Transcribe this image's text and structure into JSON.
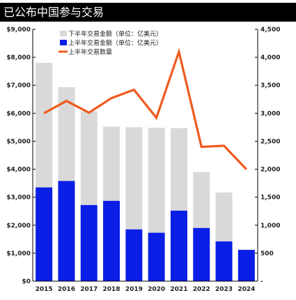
{
  "title": "已公布中国参与交易",
  "chart_data": {
    "type": "bar+line",
    "categories": [
      "2015",
      "2016",
      "2017",
      "2018",
      "2019",
      "2020",
      "2021",
      "2022",
      "2023",
      "2024"
    ],
    "series": [
      {
        "name": "下半年交易金额（单位：亿美元）",
        "type": "bar",
        "color": "#d9d9d9",
        "values": [
          4450,
          3350,
          3350,
          2650,
          3650,
          3750,
          2950,
          2000,
          1750,
          0
        ]
      },
      {
        "name": "上半年交易金额（单位：亿美元）",
        "type": "bar",
        "color": "#0a1ee6",
        "values": [
          3350,
          3580,
          2720,
          2870,
          1850,
          1730,
          2520,
          1900,
          1420,
          1120
        ]
      },
      {
        "name": "上半年交易数量",
        "type": "line",
        "color": "#f05a1e",
        "axis": "right",
        "values": [
          3000,
          3220,
          3010,
          3270,
          3420,
          2920,
          4100,
          2400,
          2420,
          2000
        ]
      }
    ],
    "stacked": true,
    "ylim_left": [
      0,
      9000
    ],
    "ylim_right": [
      0,
      4500
    ],
    "left_ticks": [
      "$0",
      "$1,000",
      "$2,000",
      "$3,000",
      "$4,000",
      "$5,000",
      "$6,000",
      "$7,000",
      "$8,000",
      "$9,000"
    ],
    "right_ticks": [
      "-",
      "500",
      "1,000",
      "1,500",
      "2,000",
      "2,500",
      "3,000",
      "3,500",
      "4,000",
      "4,500"
    ],
    "legend_position": "top-center",
    "grid": false
  }
}
